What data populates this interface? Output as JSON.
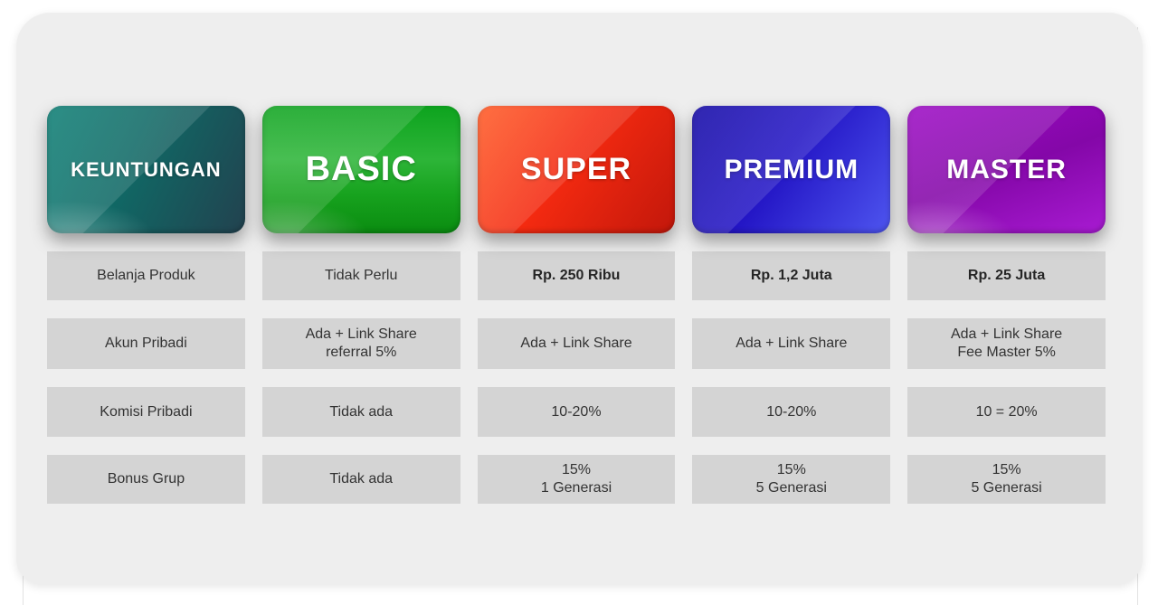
{
  "page": {
    "background": "#ffffff",
    "panel_background": "#eeeeee",
    "cell_background": "#d4d4d4",
    "cell_text_color": "#333333",
    "header_text_color": "#ffffff"
  },
  "columns": [
    {
      "header": "KEUNTUNGAN",
      "gradient_from": "#0c7e74",
      "gradient_to": "#22424f",
      "rows": [
        [
          "Belanja Produk"
        ],
        [
          "Akun Pribadi"
        ],
        [
          "Komisi Pribadi"
        ],
        [
          "Bonus Grup"
        ]
      ]
    },
    {
      "header": "BASIC",
      "gradient_from": "#0da31e",
      "gradient_to": "#0a8c10",
      "rows": [
        [
          "Tidak Perlu"
        ],
        [
          "Ada + Link Share",
          "referral 5%"
        ],
        [
          "Tidak ada"
        ],
        [
          "Tidak ada"
        ]
      ]
    },
    {
      "header": "SUPER",
      "gradient_from": "#ff5a25",
      "gradient_to": "#c2170b",
      "rows": [
        [
          "Rp. 250 Ribu"
        ],
        [
          "Ada + Link Share"
        ],
        [
          "10-20%"
        ],
        [
          "15%",
          "1 Generasi"
        ]
      ]
    },
    {
      "header": "PREMIUM",
      "gradient_from": "#1106a5",
      "gradient_to": "#4e55ef",
      "rows": [
        [
          "Rp. 1,2 Juta"
        ],
        [
          "Ada + Link Share"
        ],
        [
          "10-20%"
        ],
        [
          "15%",
          "5 Generasi"
        ]
      ]
    },
    {
      "header": "MASTER",
      "gradient_from": "#9c09c4",
      "gradient_to": "#a81bd2",
      "rows": [
        [
          "Rp. 25 Juta"
        ],
        [
          "Ada + Link Share",
          "Fee Master 5%"
        ],
        [
          "10 = 20%"
        ],
        [
          "15%",
          "5 Generasi"
        ]
      ]
    }
  ],
  "chart_data": {
    "type": "table",
    "title": "",
    "columns": [
      "KEUNTUNGAN",
      "BASIC",
      "SUPER",
      "PREMIUM",
      "MASTER"
    ],
    "rows": [
      [
        "Belanja Produk",
        "Tidak Perlu",
        "Rp. 250 Ribu",
        "Rp. 1,2 Juta",
        "Rp. 25 Juta"
      ],
      [
        "Akun Pribadi",
        "Ada + Link Share referral 5%",
        "Ada + Link Share",
        "Ada + Link Share",
        "Ada + Link Share Fee Master 5%"
      ],
      [
        "Komisi Pribadi",
        "Tidak ada",
        "10-20%",
        "10-20%",
        "10 = 20%"
      ],
      [
        "Bonus Grup",
        "Tidak ada",
        "15% 1 Generasi",
        "15% 5 Generasi",
        "15% 5 Generasi"
      ]
    ]
  }
}
